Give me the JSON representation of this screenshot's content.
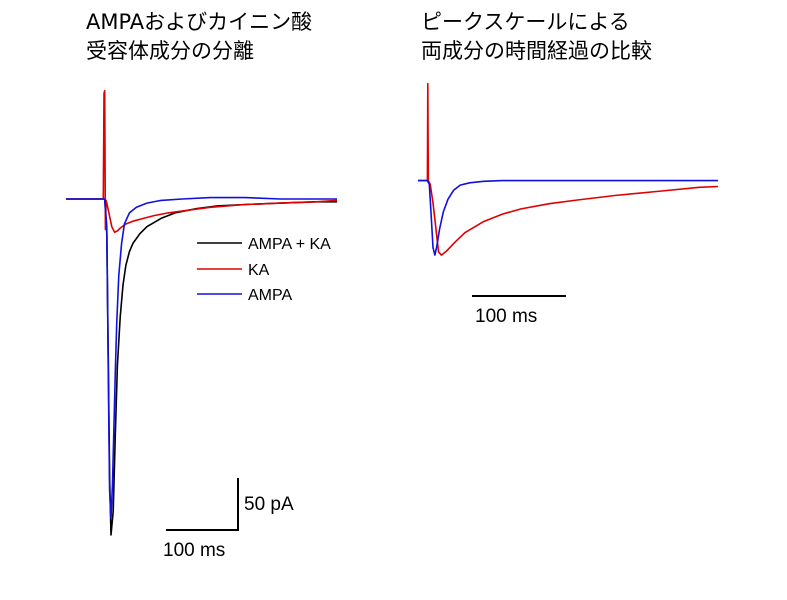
{
  "titles": {
    "left": [
      "AMPAおよびカイニン酸",
      "受容体成分の分離"
    ],
    "right": [
      "ピークスケールによる",
      "両成分の時間経過の比較"
    ]
  },
  "legend": [
    {
      "label": "AMPA + KA",
      "color": "#000000"
    },
    {
      "label": "KA",
      "color": "#e00000"
    },
    {
      "label": "AMPA",
      "color": "#1010e0"
    }
  ],
  "scale_bars": {
    "left_time": "100 ms",
    "left_current": "50 pA",
    "right_time": "100 ms"
  },
  "chart_data": [
    {
      "type": "line",
      "title": "AMPAおよびカイニン酸受容体成分の分離",
      "x_unit": "ms",
      "y_unit": "pA",
      "xlim": [
        -55,
        330
      ],
      "ylim": [
        -250,
        85
      ],
      "grid": false,
      "legend_position": "center-right",
      "series": [
        {
          "name": "AMPA + KA",
          "color": "#000000",
          "x": [
            -55,
            -10,
            -1,
            0,
            3,
            5,
            7,
            9,
            12,
            15,
            18,
            22,
            26,
            30,
            35,
            40,
            50,
            60,
            80,
            100,
            130,
            160,
            200,
            250,
            300,
            330
          ],
          "y": [
            0,
            0,
            0,
            0,
            -25,
            -110,
            -200,
            -242,
            -225,
            -170,
            -120,
            -85,
            -62,
            -48,
            -38,
            -32,
            -25,
            -20,
            -14,
            -10,
            -7,
            -5,
            -4,
            -3,
            -2,
            -2
          ]
        },
        {
          "name": "KA",
          "color": "#e00000",
          "x": [
            -55,
            -2,
            -1,
            0,
            1,
            2,
            3,
            6,
            10,
            14,
            18,
            22,
            30,
            40,
            55,
            70,
            90,
            120,
            150,
            200,
            250,
            300,
            330
          ],
          "y": [
            0,
            0,
            76,
            78,
            -22,
            -1,
            -3,
            -10,
            -20,
            -24,
            -23,
            -21,
            -18,
            -16,
            -14,
            -12,
            -10,
            -8,
            -6,
            -4,
            -3,
            -2,
            -1
          ]
        },
        {
          "name": "AMPA",
          "color": "#1010e0",
          "x": [
            -55,
            -1,
            0,
            3,
            5,
            7,
            9,
            11,
            13,
            15,
            17,
            20,
            24,
            28,
            35,
            45,
            60,
            80,
            110,
            150,
            200,
            250,
            300,
            330
          ],
          "y": [
            0,
            0,
            0,
            -20,
            -120,
            -210,
            -230,
            -205,
            -165,
            -125,
            -90,
            -55,
            -32,
            -18,
            -10,
            -6,
            -3,
            -1,
            0,
            1,
            1,
            0,
            0,
            0
          ]
        }
      ]
    },
    {
      "type": "line",
      "title": "ピークスケールによる両成分の時間経過の比較",
      "x_unit": "ms",
      "y_unit": "normalized",
      "xlim": [
        -10,
        310
      ],
      "ylim": [
        -1.2,
        1.35
      ],
      "grid": false,
      "series": [
        {
          "name": "KA",
          "color": "#e00000",
          "x": [
            -10,
            0,
            0.5,
            1,
            3,
            6,
            10,
            12,
            15,
            20,
            30,
            40,
            60,
            80,
            100,
            130,
            160,
            200,
            250,
            290,
            310
          ],
          "y": [
            0,
            0,
            1.3,
            0,
            -0.05,
            -0.3,
            -0.75,
            -0.96,
            -1.0,
            -0.95,
            -0.82,
            -0.7,
            -0.55,
            -0.45,
            -0.38,
            -0.31,
            -0.26,
            -0.2,
            -0.14,
            -0.09,
            -0.08
          ]
        },
        {
          "name": "AMPA",
          "color": "#1010e0",
          "x": [
            -10,
            0,
            2,
            4,
            6,
            8,
            10,
            13,
            17,
            22,
            28,
            35,
            45,
            60,
            80,
            120,
            200,
            310
          ],
          "y": [
            0,
            0,
            -0.05,
            -0.45,
            -0.9,
            -1.0,
            -0.88,
            -0.65,
            -0.42,
            -0.25,
            -0.13,
            -0.06,
            -0.03,
            -0.01,
            0,
            0,
            0,
            0
          ]
        }
      ]
    }
  ]
}
